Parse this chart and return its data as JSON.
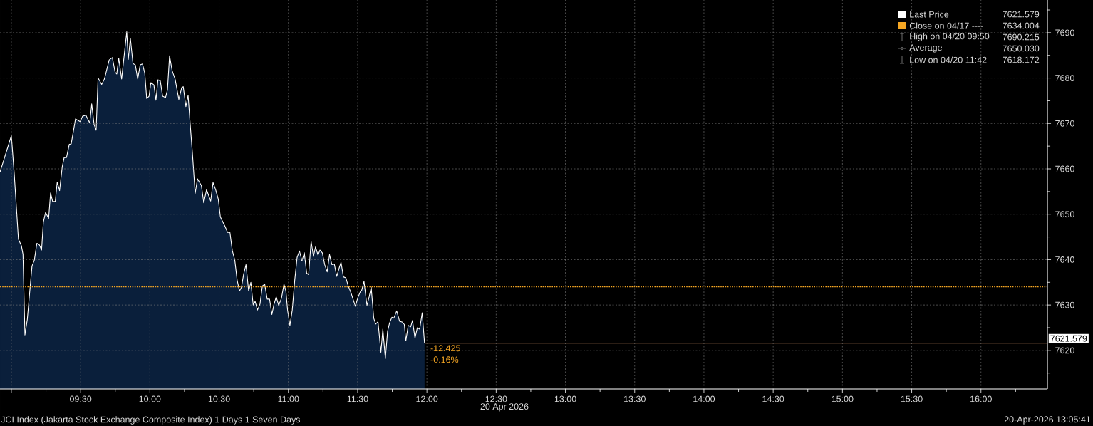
{
  "chart_data": {
    "type": "area",
    "x": [
      8.918,
      9.0,
      9.021,
      9.051,
      9.072,
      9.084,
      9.098,
      9.115,
      9.149,
      9.166,
      9.184,
      9.201,
      9.218,
      9.231,
      9.247,
      9.269,
      9.283,
      9.298,
      9.317,
      9.331,
      9.348,
      9.367,
      9.381,
      9.398,
      9.418,
      9.432,
      9.463,
      9.497,
      9.514,
      9.538,
      9.566,
      9.58,
      9.597,
      9.612,
      9.626,
      9.652,
      9.672,
      9.706,
      9.729,
      9.749,
      9.761,
      9.775,
      9.796,
      9.833,
      9.844,
      9.859,
      9.878,
      9.895,
      9.912,
      9.93,
      9.947,
      9.963,
      9.977,
      9.994,
      10.007,
      10.029,
      10.044,
      10.058,
      10.075,
      10.092,
      10.113,
      10.127,
      10.142,
      10.161,
      10.182,
      10.209,
      10.23,
      10.241,
      10.26,
      10.276,
      10.29,
      10.307,
      10.327,
      10.344,
      10.372,
      10.389,
      10.409,
      10.439,
      10.456,
      10.475,
      10.494,
      10.509,
      10.543,
      10.561,
      10.578,
      10.595,
      10.613,
      10.63,
      10.647,
      10.661,
      10.677,
      10.694,
      10.713,
      10.729,
      10.746,
      10.76,
      10.777,
      10.795,
      10.812,
      10.829,
      10.847,
      10.864,
      10.881,
      10.895,
      10.912,
      10.93,
      10.95,
      10.968,
      10.982,
      10.994,
      11.011,
      11.028,
      11.046,
      11.063,
      11.08,
      11.098,
      11.115,
      11.132,
      11.146,
      11.164,
      11.181,
      11.196,
      11.214,
      11.228,
      11.245,
      11.262,
      11.28,
      11.297,
      11.314,
      11.332,
      11.349,
      11.366,
      11.38,
      11.397,
      11.415,
      11.432,
      11.453,
      11.484,
      11.501,
      11.519,
      11.529,
      11.546,
      11.567,
      11.583,
      11.598,
      11.616,
      11.63,
      11.647,
      11.668,
      11.682,
      11.7,
      11.716,
      11.73,
      11.747,
      11.761,
      11.782,
      11.803,
      11.824,
      11.837,
      11.848,
      11.865,
      11.883,
      11.896,
      11.914,
      11.931,
      11.948,
      11.966,
      11.983
    ],
    "series": [
      {
        "name": "Last Price",
        "color": "#ffffff",
        "values": [
          7659.3,
          7667.3,
          7658.8,
          7644.5,
          7643.1,
          7641.2,
          7623.4,
          7626.8,
          7638.6,
          7639.9,
          7643.6,
          7643.3,
          7642.1,
          7648.3,
          7650.4,
          7649.1,
          7654.7,
          7652.8,
          7652.8,
          7657.1,
          7655.2,
          7660.4,
          7662.5,
          7662.5,
          7665.4,
          7665.5,
          7671.0,
          7670.4,
          7671.6,
          7671.8,
          7670.1,
          7674.3,
          7669.8,
          7668.5,
          7680.0,
          7678.6,
          7679.8,
          7684.0,
          7684.5,
          7681.3,
          7680.9,
          7684.4,
          7679.8,
          7690.215,
          7684.1,
          7688.8,
          7683.2,
          7682.9,
          7679.8,
          7682.9,
          7683.1,
          7681.1,
          7675.5,
          7676.0,
          7679.0,
          7678.5,
          7675.1,
          7679.6,
          7679.4,
          7676.0,
          7675.7,
          7677.4,
          7684.9,
          7681.6,
          7679.8,
          7675.3,
          7677.9,
          7678.1,
          7673.7,
          7676.2,
          7670.3,
          7663.5,
          7654.6,
          7657.8,
          7656.3,
          7652.5,
          7655.4,
          7652.9,
          7657.0,
          7655.4,
          7653.3,
          7649.4,
          7647.3,
          7646.0,
          7646.0,
          7642.0,
          7639.9,
          7635.5,
          7633.1,
          7633.9,
          7636.8,
          7638.9,
          7633.1,
          7635.0,
          7630.0,
          7630.8,
          7628.9,
          7630.2,
          7634.2,
          7634.6,
          7631.3,
          7631.3,
          7627.9,
          7630.0,
          7631.8,
          7629.9,
          7631.5,
          7634.6,
          7633.1,
          7628.9,
          7625.5,
          7628.9,
          7635.5,
          7640.5,
          7641.9,
          7639.7,
          7641.5,
          7637.0,
          7636.7,
          7644.0,
          7640.7,
          7642.8,
          7641.0,
          7642.1,
          7641.5,
          7638.9,
          7637.3,
          7641.1,
          7638.9,
          7639.0,
          7636.3,
          7638.1,
          7639.4,
          7636.2,
          7636.0,
          7634.2,
          7632.6,
          7629.7,
          7631.6,
          7632.9,
          7633.2,
          7635.2,
          7629.9,
          7631.8,
          7633.9,
          7627.1,
          7625.8,
          7626.3,
          7619.6,
          7624.7,
          7618.172,
          7624.2,
          7626.0,
          7627.3,
          7627.1,
          7628.7,
          7626.4,
          7626.2,
          7625.7,
          7622.1,
          7625.5,
          7625.2,
          7626.6,
          7622.7,
          7625.0,
          7624.7,
          7628.3,
          7621.579
        ]
      }
    ],
    "xlim": [
      8.918,
      16.48
    ],
    "ylim": [
      7611.5,
      7697.2
    ],
    "xticks": [
      {
        "value": 9,
        "label": null
      },
      {
        "value": 9.5,
        "label": "09:30"
      },
      {
        "value": 10,
        "label": "10:00"
      },
      {
        "value": 10.5,
        "label": "10:30"
      },
      {
        "value": 11,
        "label": "11:00"
      },
      {
        "value": 11.5,
        "label": "11:30"
      },
      {
        "value": 12,
        "label": "12:00"
      },
      {
        "value": 12.5,
        "label": "12:30"
      },
      {
        "value": 13,
        "label": "13:00"
      },
      {
        "value": 13.5,
        "label": "13:30"
      },
      {
        "value": 14,
        "label": "14:00"
      },
      {
        "value": 14.5,
        "label": "14:30"
      },
      {
        "value": 15,
        "label": "15:00"
      },
      {
        "value": 15.5,
        "label": "15:30"
      },
      {
        "value": 16,
        "label": "16:00"
      }
    ],
    "yticks": [
      7620,
      7630,
      7640,
      7650,
      7660,
      7670,
      7680,
      7690
    ],
    "xlabel": "20 Apr 2026",
    "ref_lines": [
      {
        "axis": "y",
        "value": 7634.004,
        "label": "Close on 04/17 ----",
        "color": "#f5a623",
        "line_style": "dotted"
      },
      {
        "axis": "y",
        "value": 7621.579,
        "label": "7621.579",
        "color": "#e0a070",
        "line_style": "solid"
      }
    ],
    "annotations": [
      "7621.579",
      "7634.004",
      "High on 04/20 09:50",
      "7690.215",
      "Average",
      "7650.030",
      "Low on 04/20 11:42",
      "7618.172",
      "-12.425",
      "-0.16%",
      "JCI Index (Jakarta Stock Exchange Composite Index) 1 Days 1 Seven Days",
      "20-Apr-2026 13:05:41"
    ],
    "grid": true,
    "legend": "top right"
  }
}
